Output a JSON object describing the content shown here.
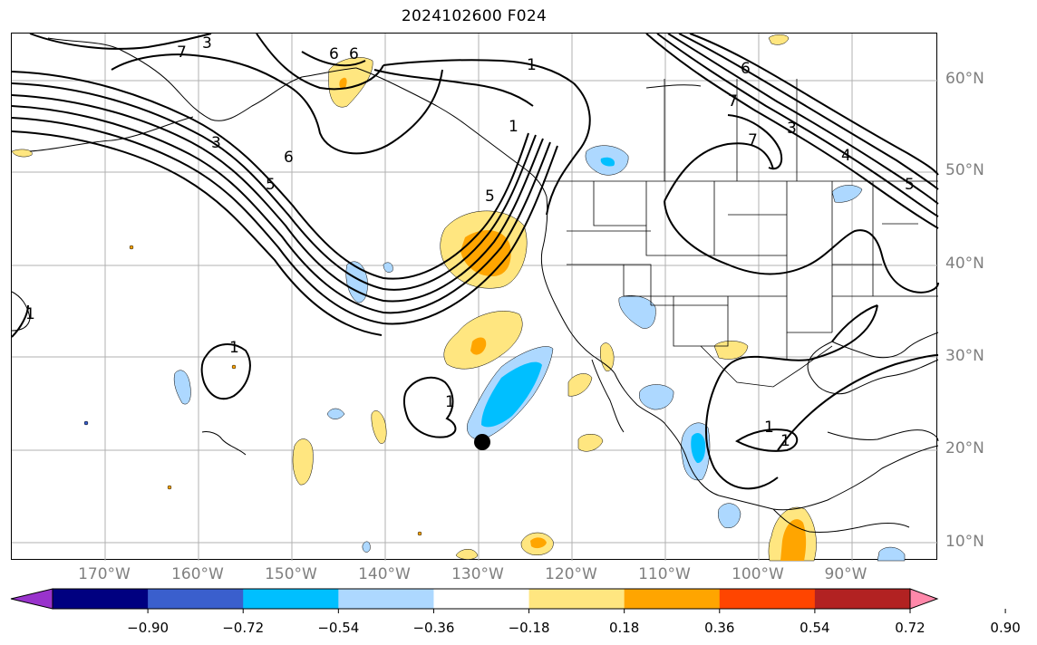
{
  "title": "2024102600 F024",
  "lat_labels": [
    "60°N",
    "50°N",
    "40°N",
    "30°N",
    "20°N",
    "10°N"
  ],
  "lon_labels": [
    "170°W",
    "160°W",
    "150°W",
    "140°W",
    "130°W",
    "120°W",
    "110°W",
    "100°W",
    "90°W"
  ],
  "contour_labels": [
    "3",
    "6",
    "7",
    "6",
    "5",
    "1",
    "6",
    "3",
    "4",
    "5",
    "3",
    "6",
    "7",
    "5",
    "1",
    "1",
    "1",
    "7",
    "1",
    "1",
    "1"
  ],
  "colorbar": {
    "tick_labels": [
      "−0.90",
      "−0.72",
      "−0.54",
      "−0.36",
      "−0.18",
      "0.18",
      "0.36",
      "0.54",
      "0.72",
      "0.90"
    ],
    "colors": [
      "#9933cc",
      "#000080",
      "#3a5fcd",
      "#00bfff",
      "#add8ff",
      "#ffffff",
      "#ffe680",
      "#ffa500",
      "#ff4500",
      "#b22222",
      "#ff88aa"
    ]
  },
  "marker": "storm-center"
}
